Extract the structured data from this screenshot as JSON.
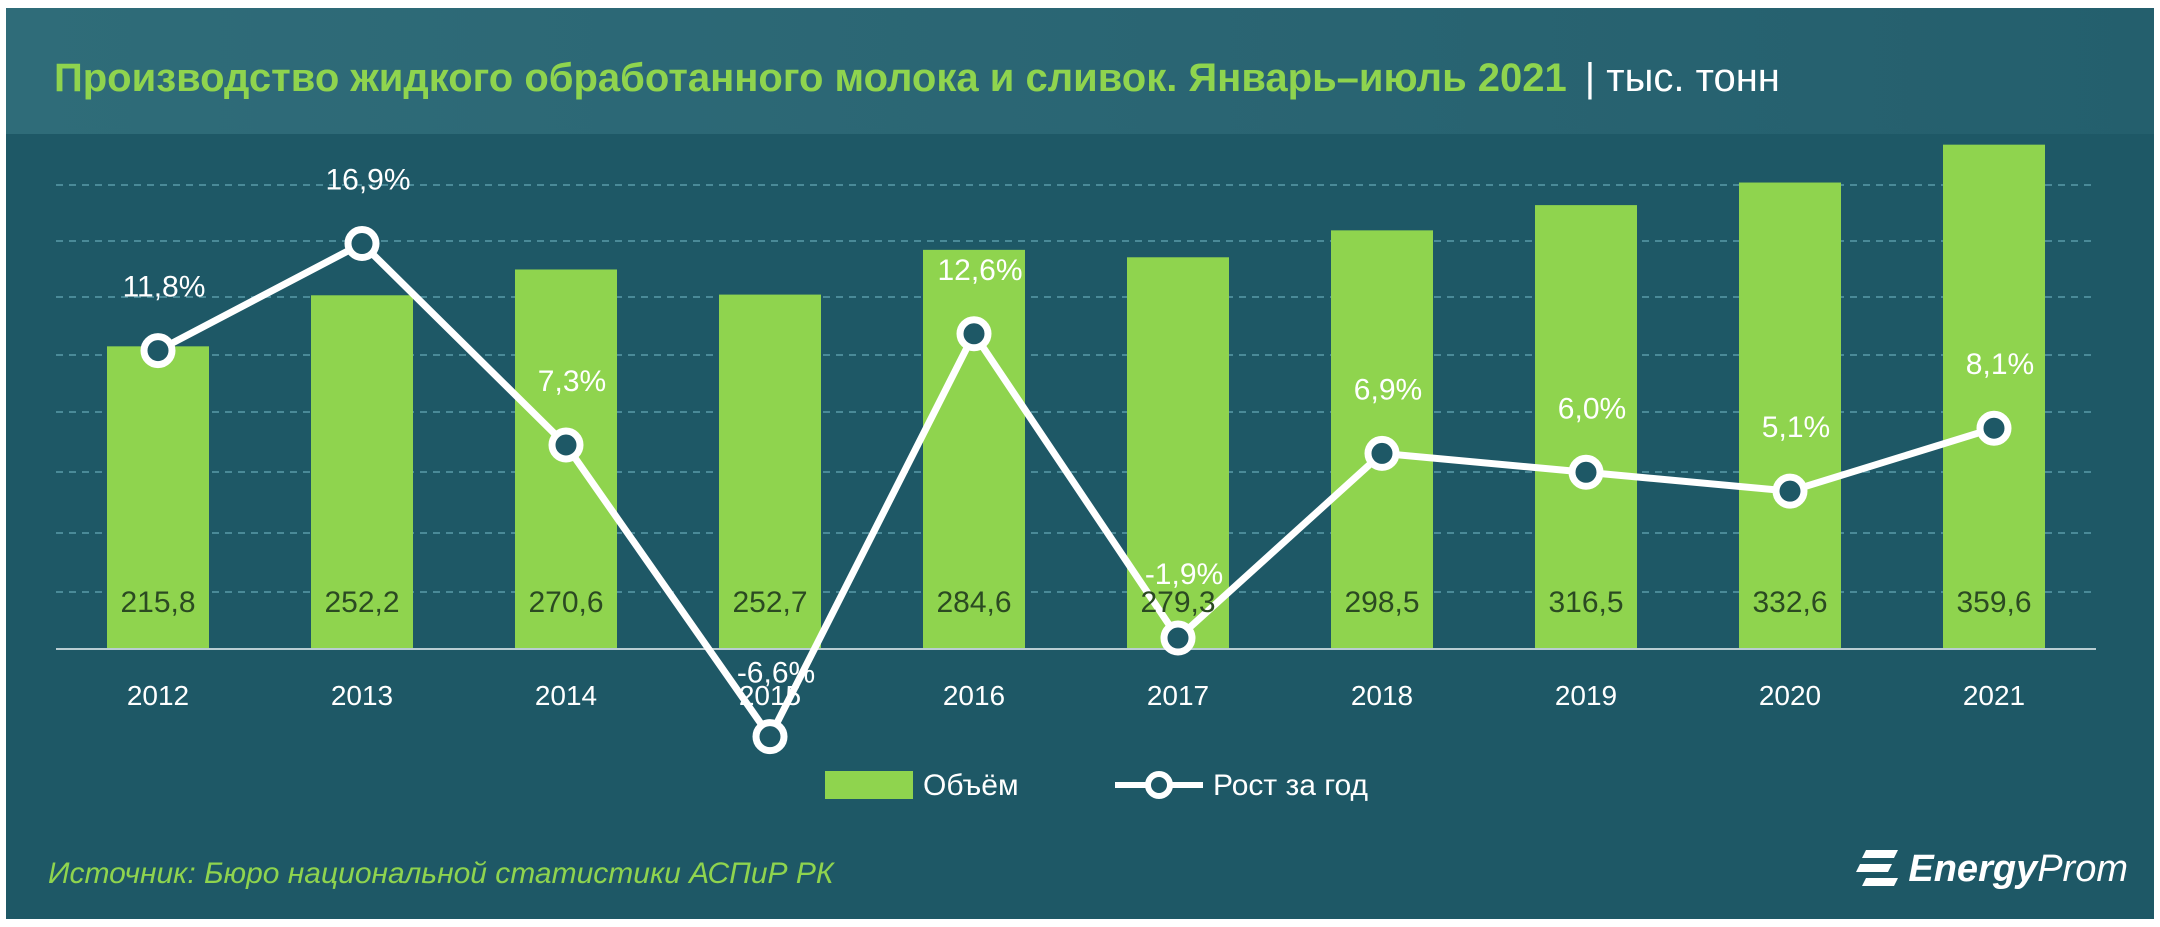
{
  "title": "Производство жидкого обработанного молока и сливок. Январь–июль 2021",
  "unit": "| тыс. тонн",
  "source": "Источник: Бюро национальной  статистики АСПиР РК",
  "logo": {
    "part1": "Energy",
    "part2": "Prom"
  },
  "colors": {
    "background": "#1e5866",
    "bar": "#8fd44e",
    "line": "#ffffff",
    "title": "#8fd44e",
    "grid": "#4a8a98"
  },
  "chart_data": {
    "type": "bar",
    "categories": [
      "2012",
      "2013",
      "2014",
      "2015",
      "2016",
      "2017",
      "2018",
      "2019",
      "2020",
      "2021"
    ],
    "series": [
      {
        "name": "Объём",
        "type": "bar",
        "values": [
          215.8,
          252.2,
          270.6,
          252.7,
          284.6,
          279.3,
          298.5,
          316.5,
          332.6,
          359.6
        ],
        "labels": [
          "215,8",
          "252,2",
          "270,6",
          "252,7",
          "284,6",
          "279,3",
          "298,5",
          "316,5",
          "332,6",
          "359,6"
        ]
      },
      {
        "name": "Рост за год",
        "type": "line",
        "values": [
          11.8,
          16.9,
          7.3,
          -6.6,
          12.6,
          -1.9,
          6.9,
          6.0,
          5.1,
          8.1
        ],
        "labels": [
          "11,8%",
          "16,9%",
          "7,3%",
          "-6,6%",
          "12,6%",
          "-1,9%",
          "6,9%",
          "6,0%",
          "5,1%",
          "8,1%"
        ]
      }
    ],
    "legend": {
      "position": "bottom",
      "items": [
        "Объём",
        "Рост за год"
      ]
    },
    "grid": true,
    "ylim_bar": [
      0,
      400
    ],
    "ylim_line": [
      -10,
      25
    ]
  }
}
